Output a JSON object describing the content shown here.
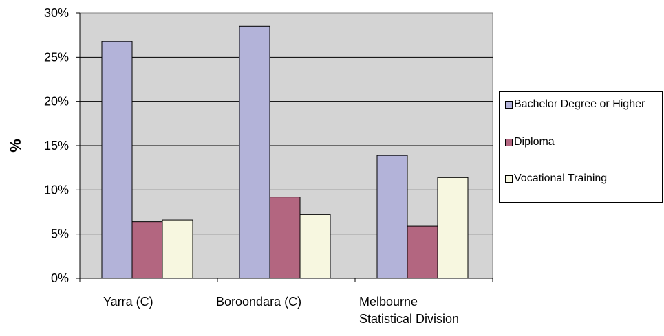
{
  "chart_data": {
    "type": "bar",
    "categories": [
      "Yarra (C)",
      "Boroondara (C)",
      "Melbourne Statistical Division"
    ],
    "series": [
      {
        "name": "Bachelor Degree or Higher",
        "values": [
          26.8,
          28.5,
          13.9
        ],
        "color": "#b3b3d9"
      },
      {
        "name": "Diploma",
        "values": [
          6.4,
          9.2,
          5.9
        ],
        "color": "#b36680"
      },
      {
        "name": "Vocational Training",
        "values": [
          6.6,
          7.2,
          11.4
        ],
        "color": "#f7f7e0"
      }
    ],
    "title": "",
    "xlabel": "",
    "ylabel": "%",
    "ylim": [
      0,
      30
    ],
    "yticks": [
      "0%",
      "5%",
      "10%",
      "15%",
      "20%",
      "25%",
      "30%"
    ],
    "grid": true,
    "plot_background": "#d4d4d4",
    "legend_position": "right"
  }
}
